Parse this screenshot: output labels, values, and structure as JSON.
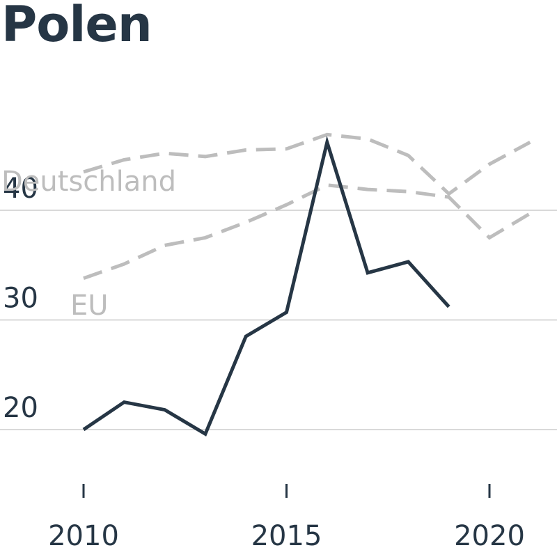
{
  "chart_data": {
    "type": "line",
    "title": "Polen",
    "xlabel": "",
    "ylabel": "",
    "xlim": [
      2009,
      2021
    ],
    "ylim": [
      13.6,
      50
    ],
    "x_ticks": [
      2010,
      2015,
      2020
    ],
    "y_ticks": [
      20,
      30,
      40
    ],
    "grid": true,
    "series": [
      {
        "name": "Deutschland",
        "color": "#bdbdbd",
        "dashed": true,
        "x": [
          2010,
          2011,
          2012,
          2013,
          2014,
          2015,
          2016,
          2017,
          2018,
          2019,
          2020,
          2021
        ],
        "values": [
          43.5,
          44.6,
          45.2,
          44.9,
          45.5,
          45.6,
          46.9,
          46.5,
          45.0,
          41.5,
          44.2,
          46.2
        ]
      },
      {
        "name": "EU",
        "color": "#bdbdbd",
        "dashed": true,
        "x": [
          2010,
          2011,
          2012,
          2013,
          2014,
          2015,
          2016,
          2017,
          2018,
          2019,
          2020,
          2021
        ],
        "values": [
          33.8,
          35.1,
          36.8,
          37.5,
          38.9,
          40.5,
          42.3,
          41.9,
          41.7,
          41.2,
          37.5,
          39.7
        ]
      },
      {
        "name": "Polen",
        "color": "#263645",
        "dashed": false,
        "x": [
          2010,
          2011,
          2012,
          2013,
          2014,
          2015,
          2016,
          2017,
          2018,
          2019
        ],
        "values": [
          20.0,
          22.5,
          21.8,
          19.6,
          28.5,
          30.7,
          46.2,
          34.3,
          35.3,
          31.2
        ]
      }
    ]
  }
}
